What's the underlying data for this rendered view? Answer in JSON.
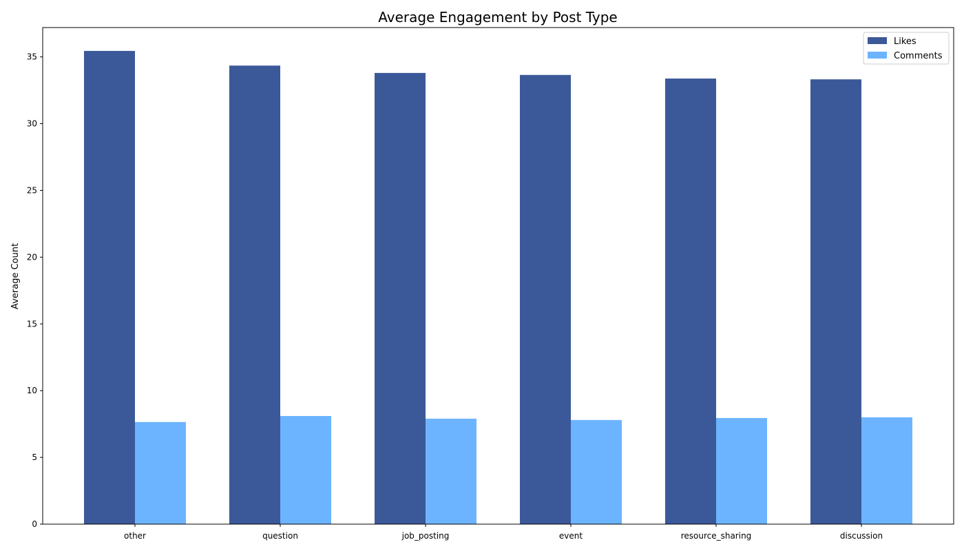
{
  "chart_data": {
    "type": "bar",
    "title": "Average Engagement by Post Type",
    "xlabel": "",
    "ylabel": "Average Count",
    "categories": [
      "other",
      "question",
      "job_posting",
      "event",
      "resource_sharing",
      "discussion"
    ],
    "series": [
      {
        "name": "Likes",
        "color": "#3b5998",
        "values": [
          35.45,
          34.35,
          33.8,
          33.65,
          33.38,
          33.32
        ]
      },
      {
        "name": "Comments",
        "color": "#6cb4ff",
        "values": [
          7.65,
          8.1,
          7.9,
          7.8,
          7.95,
          8.0
        ]
      }
    ],
    "ylim": [
      0,
      37.2
    ],
    "yticks": [
      0,
      5,
      10,
      15,
      20,
      25,
      30,
      35
    ],
    "grid": false,
    "legend_position": "top-right"
  }
}
